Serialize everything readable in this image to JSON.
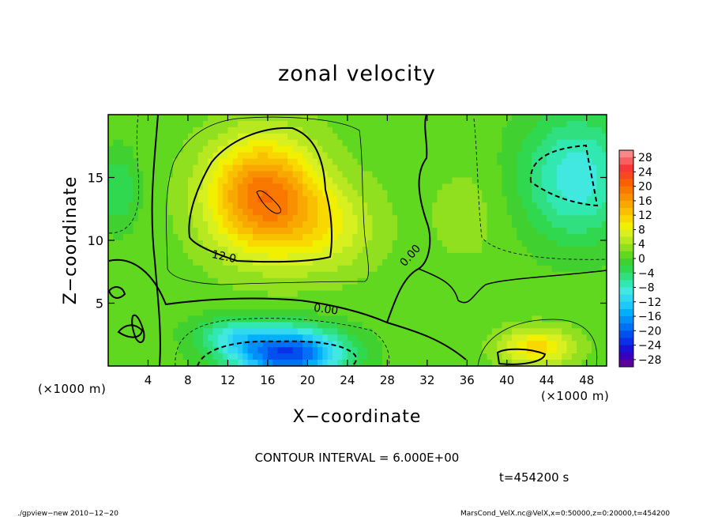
{
  "chart_data": {
    "type": "heatmap",
    "title": "zonal velocity",
    "xlabel": "X−coordinate",
    "ylabel": "Z−coordinate",
    "x_unit_note": "(×1000 m)",
    "z_unit_note": "(×1000 m)",
    "xlim": [
      0,
      50
    ],
    "ylim": [
      0,
      20
    ],
    "x_ticks": [
      4,
      8,
      12,
      16,
      20,
      24,
      28,
      32,
      36,
      40,
      44,
      48
    ],
    "y_ticks": [
      5,
      10,
      15
    ],
    "colorbar": {
      "labels": [
        "28",
        "24",
        "20",
        "16",
        "12",
        "8",
        "4",
        "0",
        "−4",
        "−8",
        "−12",
        "−16",
        "−20",
        "−24",
        "−28"
      ],
      "levels": [
        -30,
        -28,
        -26,
        -24,
        -22,
        -20,
        -18,
        -16,
        -14,
        -12,
        -10,
        -8,
        -6,
        -4,
        -2,
        0,
        2,
        4,
        6,
        8,
        10,
        12,
        14,
        16,
        18,
        20,
        22,
        24,
        26,
        28,
        30
      ],
      "colors": [
        "#5b0099",
        "#3a00c0",
        "#1a10d8",
        "#0a30e8",
        "#0050f0",
        "#0070f5",
        "#0090f8",
        "#00b0fa",
        "#20c8fa",
        "#30d8f0",
        "#40e8e0",
        "#30e8b0",
        "#30e080",
        "#30d850",
        "#40d030",
        "#60d820",
        "#90e020",
        "#b8e820",
        "#d8f020",
        "#f0f000",
        "#f8d800",
        "#f8c000",
        "#f8a800",
        "#f89000",
        "#f87800",
        "#f86000",
        "#f84820",
        "#f83838",
        "#f86060",
        "#f88888"
      ]
    },
    "contour_labels": [
      "12.0",
      "0.00",
      "0.00"
    ],
    "annotations": {
      "contour_interval": "CONTOUR INTERVAL = 6.000E+00",
      "time": "t=454200 s",
      "footer_left": "./gpview−new   2010−12−20",
      "footer_right": "MarsCond_VelX.nc@VelX,x=0:50000,z=0:20000,t=454200"
    },
    "field_features": [
      {
        "x": 15.5,
        "z": 13.5,
        "value": 18.5,
        "sx": 5.5,
        "sz": 4.5
      },
      {
        "x": 22.0,
        "z": 11.0,
        "value": 6.0,
        "sx": 5.0,
        "sz": 3.5
      },
      {
        "x": 18.0,
        "z": 1.0,
        "value": -23.0,
        "sx": 5.5,
        "sz": 2.0
      },
      {
        "x": 12.5,
        "z": 2.5,
        "value": -7.0,
        "sx": 4.0,
        "sz": 1.5
      },
      {
        "x": 47.0,
        "z": 15.0,
        "value": -10.5,
        "sx": 5.5,
        "sz": 5.0
      },
      {
        "x": 1.0,
        "z": 14.0,
        "value": -5.0,
        "sx": 2.0,
        "sz": 3.0
      },
      {
        "x": 43.0,
        "z": 1.5,
        "value": 10.0,
        "sx": 3.5,
        "sz": 1.5
      },
      {
        "x": 36.0,
        "z": 12.0,
        "value": 2.0,
        "sx": 4.0,
        "sz": 4.0
      }
    ],
    "background_value": 1.0
  }
}
